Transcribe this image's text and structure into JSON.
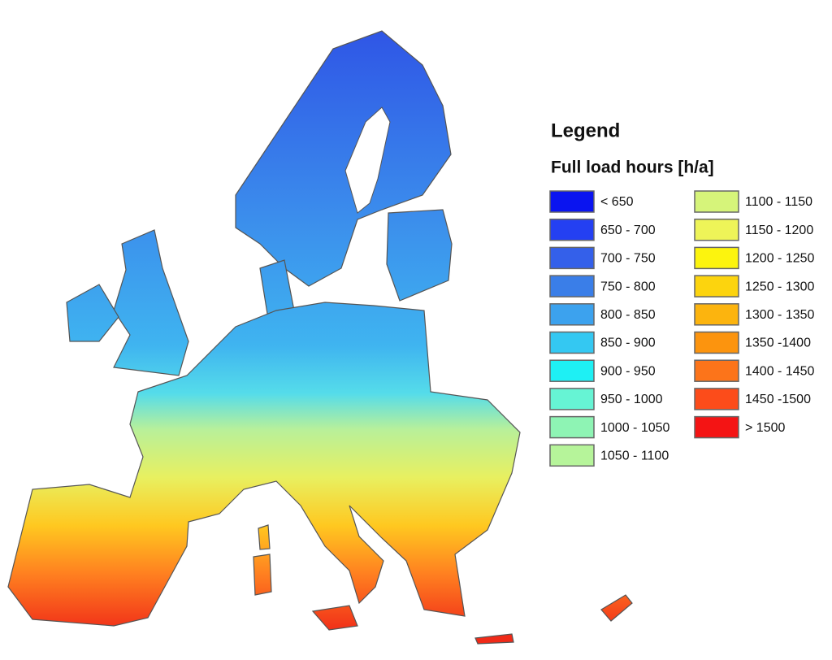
{
  "legend": {
    "title": "Legend",
    "subtitle": "Full load hours [h/a]",
    "items": [
      {
        "label": "< 650",
        "color": "#0a14f0"
      },
      {
        "label": "650 - 700",
        "color": "#2440f2"
      },
      {
        "label": "700 - 750",
        "color": "#3460ea"
      },
      {
        "label": "750 - 800",
        "color": "#3a7ee8"
      },
      {
        "label": "800 - 850",
        "color": "#3ca2ee"
      },
      {
        "label": "850 - 900",
        "color": "#34c8f2"
      },
      {
        "label": "900 - 950",
        "color": "#1ef0f4"
      },
      {
        "label": "950 - 1000",
        "color": "#66f4d4"
      },
      {
        "label": "1000 - 1050",
        "color": "#8ef4b4"
      },
      {
        "label": "1050 - 1100",
        "color": "#b6f49a"
      },
      {
        "label": "1100 - 1150",
        "color": "#d6f47a"
      },
      {
        "label": "1150 - 1200",
        "color": "#eef458"
      },
      {
        "label": "1200 - 1250",
        "color": "#fcf40e"
      },
      {
        "label": "1250 - 1300",
        "color": "#fcd40e"
      },
      {
        "label": "1300 - 1350",
        "color": "#fcb40e"
      },
      {
        "label": "1350 -1400",
        "color": "#fc940e"
      },
      {
        "label": "1400 - 1450",
        "color": "#fc741a"
      },
      {
        "label": "1450 -1500",
        "color": "#fc4c1a"
      },
      {
        "label": "> 1500",
        "color": "#f41414"
      }
    ]
  }
}
